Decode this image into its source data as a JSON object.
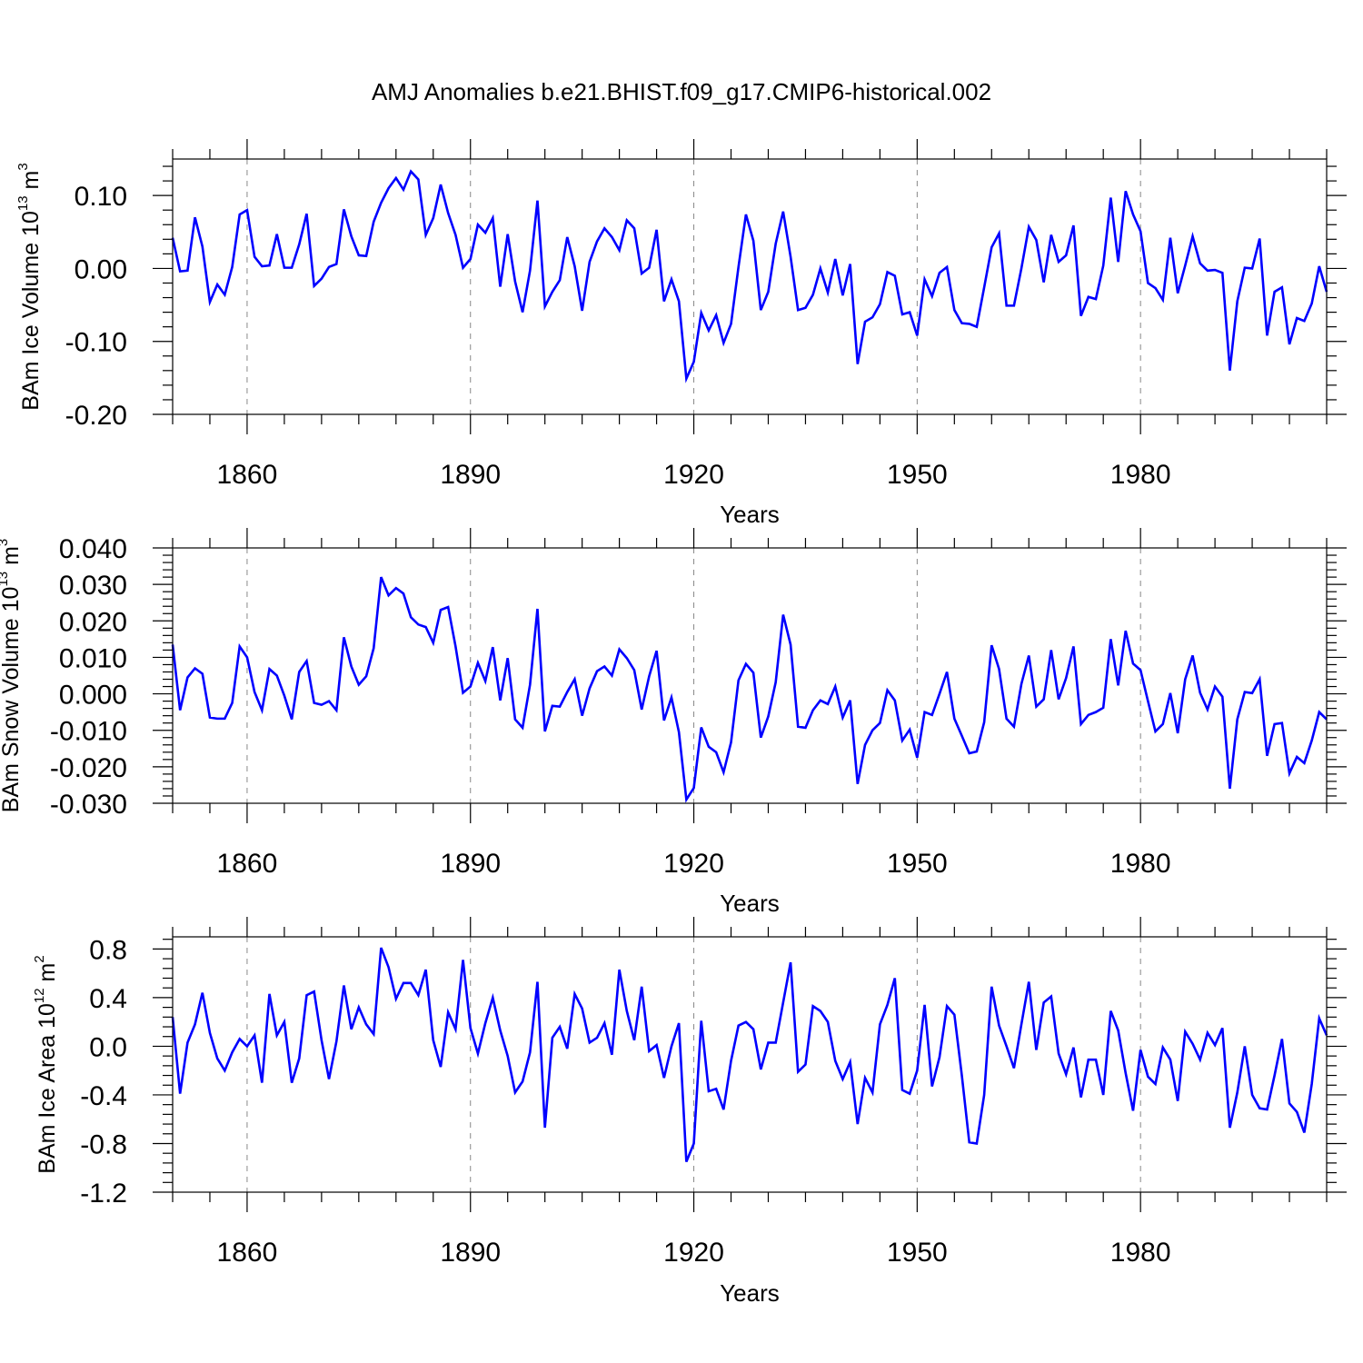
{
  "title": "AMJ Anomalies b.e21.BHIST.f09_g17.CMIP6-historical.002",
  "line_color": "#0000ff",
  "chart_data": [
    {
      "type": "line",
      "ylabel_main": "BAm Ice Volume 10",
      "ylabel_exp": "13",
      "ylabel_unit": " m",
      "ylabel_unit_exp": "3",
      "xlabel": "Years",
      "xlim": [
        1850,
        2005
      ],
      "ylim": [
        -0.2,
        0.15
      ],
      "x_ticks": [
        "1860",
        "1890",
        "1920",
        "1950",
        "1980"
      ],
      "y_ticks": [
        "0.10",
        "0.00",
        "-0.10",
        "-0.20"
      ],
      "x_start": 1850,
      "values": [
        0.042,
        -0.004,
        -0.003,
        0.07,
        0.03,
        -0.046,
        -0.022,
        -0.036,
        0.002,
        0.074,
        0.08,
        0.016,
        0.003,
        0.004,
        0.047,
        0.001,
        0.001,
        0.033,
        0.075,
        -0.024,
        -0.014,
        0.002,
        0.006,
        0.081,
        0.044,
        0.018,
        0.017,
        0.064,
        0.09,
        0.11,
        0.124,
        0.108,
        0.133,
        0.122,
        0.046,
        0.069,
        0.115,
        0.076,
        0.046,
        0.001,
        0.013,
        0.06,
        0.049,
        0.069,
        -0.025,
        0.047,
        -0.018,
        -0.06,
        -0.003,
        0.093,
        -0.052,
        -0.032,
        -0.016,
        0.043,
        0.003,
        -0.058,
        0.009,
        0.037,
        0.055,
        0.043,
        0.025,
        0.066,
        0.055,
        -0.007,
        0.001,
        0.053,
        -0.045,
        -0.015,
        -0.045,
        -0.151,
        -0.128,
        -0.061,
        -0.085,
        -0.064,
        -0.102,
        -0.076,
        0.002,
        0.074,
        0.038,
        -0.057,
        -0.032,
        0.034,
        0.078,
        0.016,
        -0.057,
        -0.054,
        -0.036,
        0.0,
        -0.033,
        0.013,
        -0.037,
        0.006,
        -0.131,
        -0.073,
        -0.067,
        -0.049,
        -0.005,
        -0.01,
        -0.063,
        -0.06,
        -0.092,
        -0.015,
        -0.038,
        -0.006,
        0.002,
        -0.057,
        -0.075,
        -0.076,
        -0.08,
        -0.026,
        0.029,
        0.048,
        -0.051,
        -0.051,
        0.0,
        0.057,
        0.039,
        -0.019,
        0.046,
        0.009,
        0.018,
        0.059,
        -0.065,
        -0.039,
        -0.042,
        0.004,
        0.097,
        0.009,
        0.106,
        0.074,
        0.051,
        -0.02,
        -0.027,
        -0.043,
        0.042,
        -0.034,
        0.004,
        0.044,
        0.007,
        -0.003,
        -0.002,
        -0.006,
        -0.14,
        -0.045,
        0.001,
        0.0,
        0.041,
        -0.092,
        -0.032,
        -0.026,
        -0.104,
        -0.068,
        -0.072,
        -0.048,
        0.003,
        -0.032
      ]
    },
    {
      "type": "line",
      "ylabel_main": "BAm Snow Volume 10",
      "ylabel_exp": "13",
      "ylabel_unit": " m",
      "ylabel_unit_exp": "3",
      "xlabel": "Years",
      "xlim": [
        1850,
        2005
      ],
      "ylim": [
        -0.03,
        0.04
      ],
      "x_ticks": [
        "1860",
        "1890",
        "1920",
        "1950",
        "1980"
      ],
      "y_ticks": [
        "0.040",
        "0.030",
        "0.020",
        "0.010",
        "0.000",
        "-0.010",
        "-0.020",
        "-0.030"
      ],
      "x_start": 1850,
      "values": [
        0.0135,
        -0.0045,
        0.0045,
        0.007,
        0.0055,
        -0.0065,
        -0.0068,
        -0.0068,
        -0.0025,
        0.013,
        0.01,
        0.0005,
        -0.0045,
        0.0068,
        0.005,
        -0.0005,
        -0.007,
        0.006,
        0.009,
        -0.0025,
        -0.003,
        -0.002,
        -0.0045,
        0.0155,
        0.0075,
        0.0025,
        0.0048,
        0.0125,
        0.032,
        0.027,
        0.029,
        0.0275,
        0.021,
        0.019,
        0.0183,
        0.014,
        0.023,
        0.0238,
        0.013,
        0.0003,
        0.002,
        0.0085,
        0.0035,
        0.0128,
        -0.0018,
        0.0098,
        -0.007,
        -0.0093,
        0.0025,
        0.0233,
        -0.0103,
        -0.0033,
        -0.0035,
        0.0005,
        0.004,
        -0.006,
        0.0015,
        0.0062,
        0.0075,
        0.005,
        0.0122,
        0.0098,
        0.0065,
        -0.0043,
        0.0048,
        0.0118,
        -0.0073,
        -0.001,
        -0.0105,
        -0.029,
        -0.0258,
        -0.0092,
        -0.0145,
        -0.016,
        -0.0215,
        -0.0133,
        0.0037,
        0.0082,
        0.0058,
        -0.012,
        -0.0062,
        0.0032,
        0.0217,
        0.0135,
        -0.009,
        -0.0093,
        -0.0045,
        -0.0018,
        -0.0028,
        0.002,
        -0.0065,
        -0.0018,
        -0.0247,
        -0.014,
        -0.01,
        -0.008,
        0.001,
        -0.0018,
        -0.0128,
        -0.0098,
        -0.0175,
        -0.005,
        -0.0058,
        0.0,
        0.006,
        -0.0068,
        -0.0115,
        -0.0163,
        -0.0158,
        -0.0078,
        0.0133,
        0.0068,
        -0.0068,
        -0.009,
        0.0027,
        0.0105,
        -0.0035,
        -0.0015,
        0.012,
        -0.0015,
        0.0043,
        0.013,
        -0.0083,
        -0.0058,
        -0.005,
        -0.0038,
        0.015,
        0.0023,
        0.0173,
        0.0083,
        0.0065,
        -0.002,
        -0.0103,
        -0.0083,
        0.0002,
        -0.0108,
        0.004,
        0.0105,
        0.0003,
        -0.0043,
        0.002,
        -0.0008,
        -0.026,
        -0.007,
        0.0005,
        0.0002,
        0.004,
        -0.017,
        -0.0083,
        -0.008,
        -0.0218,
        -0.0173,
        -0.019,
        -0.0128,
        -0.005,
        -0.007
      ]
    },
    {
      "type": "line",
      "ylabel_main": "BAm Ice Area 10",
      "ylabel_exp": "12",
      "ylabel_unit": " m",
      "ylabel_unit_exp": "2",
      "xlabel": "Years",
      "xlim": [
        1850,
        2005
      ],
      "ylim": [
        -1.2,
        0.9
      ],
      "x_ticks": [
        "1860",
        "1890",
        "1920",
        "1950",
        "1980"
      ],
      "y_ticks": [
        "0.8",
        "0.4",
        "0.0",
        "-0.4",
        "-0.8",
        "-1.2"
      ],
      "x_start": 1850,
      "values": [
        0.24,
        -0.39,
        0.03,
        0.18,
        0.44,
        0.11,
        -0.1,
        -0.2,
        -0.05,
        0.06,
        0.0,
        0.09,
        -0.3,
        0.43,
        0.09,
        0.2,
        -0.3,
        -0.1,
        0.42,
        0.45,
        0.05,
        -0.27,
        0.04,
        0.5,
        0.14,
        0.32,
        0.18,
        0.1,
        0.81,
        0.65,
        0.39,
        0.52,
        0.52,
        0.42,
        0.63,
        0.05,
        -0.17,
        0.28,
        0.14,
        0.71,
        0.15,
        -0.06,
        0.19,
        0.4,
        0.13,
        -0.08,
        -0.38,
        -0.29,
        -0.05,
        0.53,
        -0.67,
        0.07,
        0.16,
        -0.02,
        0.43,
        0.31,
        0.03,
        0.07,
        0.19,
        -0.07,
        0.63,
        0.29,
        0.05,
        0.49,
        -0.04,
        0.01,
        -0.26,
        0.0,
        0.19,
        -0.95,
        -0.8,
        0.21,
        -0.37,
        -0.35,
        -0.52,
        -0.12,
        0.17,
        0.2,
        0.14,
        -0.19,
        0.03,
        0.03,
        0.36,
        0.69,
        -0.21,
        -0.15,
        0.33,
        0.29,
        0.2,
        -0.12,
        -0.27,
        -0.13,
        -0.64,
        -0.26,
        -0.38,
        0.18,
        0.34,
        0.56,
        -0.36,
        -0.39,
        -0.2,
        0.34,
        -0.33,
        -0.09,
        0.33,
        0.26,
        -0.24,
        -0.79,
        -0.8,
        -0.4,
        0.49,
        0.17,
        0.0,
        -0.18,
        0.18,
        0.53,
        -0.03,
        0.36,
        0.41,
        -0.06,
        -0.23,
        -0.01,
        -0.42,
        -0.11,
        -0.11,
        -0.4,
        0.29,
        0.13,
        -0.22,
        -0.53,
        -0.03,
        -0.25,
        -0.31,
        -0.01,
        -0.11,
        -0.45,
        0.12,
        0.02,
        -0.11,
        0.11,
        0.01,
        0.15,
        -0.67,
        -0.38,
        0.0,
        -0.4,
        -0.51,
        -0.52,
        -0.24,
        0.06,
        -0.47,
        -0.54,
        -0.71,
        -0.31,
        0.23,
        0.09
      ]
    }
  ]
}
